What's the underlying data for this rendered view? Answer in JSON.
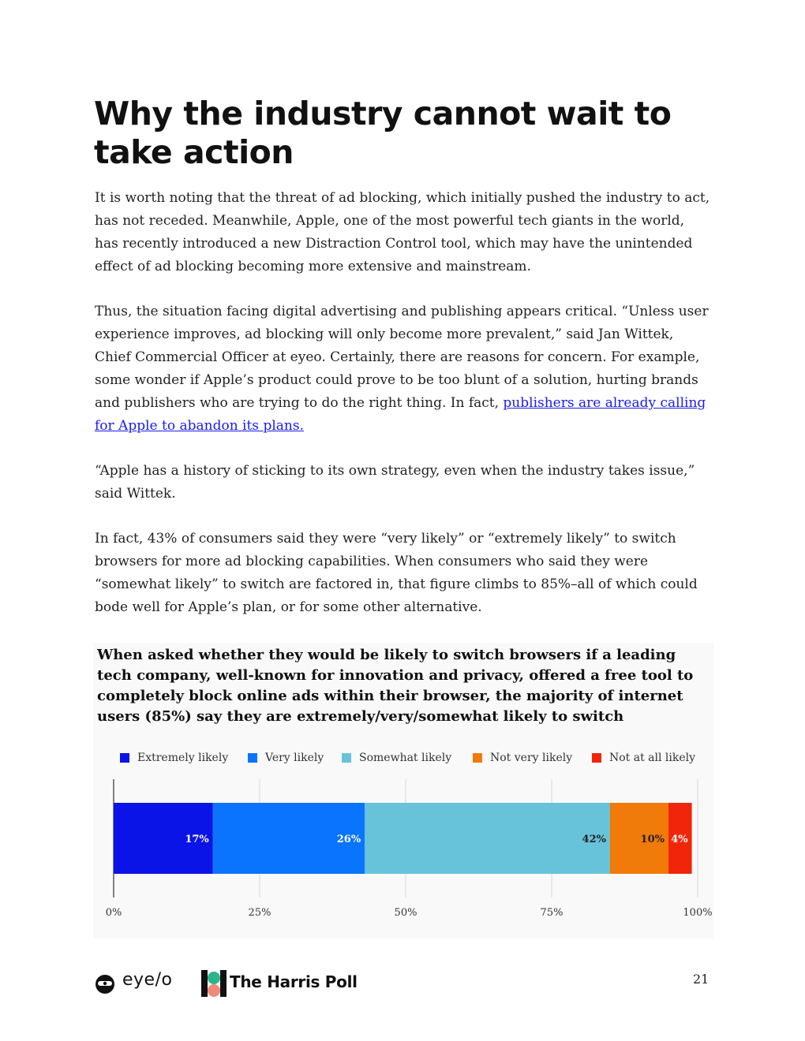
{
  "page": {
    "title": "Why the industry cannot wait to take action",
    "paragraph_1": "It is worth noting that the threat of ad blocking, which initially pushed the industry to act, has not receded. Meanwhile, Apple, one of the most powerful tech giants in the world, has recently introduced a new Distraction Control tool, which may have the unintended effect of ad blocking becoming more extensive and mainstream.",
    "paragraph_2_text": "Thus, the situation facing digital advertising and publishing appears critical. “Unless user experience improves, ad blocking will only become more prevalent,” said Jan Wittek, Chief Commercial Officer at eyeo. Certainly, there are reasons for concern. For example, some wonder if Apple’s product could prove to be too blunt of a solution, hurting brands and publishers who are trying to do the right thing. In fact, ",
    "paragraph_2_link": "publishers are already calling for Apple to abandon its plans.",
    "paragraph_3": "“Apple has a history of sticking to its own strategy, even when the industry takes issue,” said Wittek.",
    "paragraph_4": "In fact, 43% of consumers said they were “very likely” or “extremely likely” to switch browsers for more ad blocking capabilities. When consumers who said they were “somewhat likely” to switch are factored in, that figure climbs to 85%–all of which could bode well for Apple’s plan, or for some other alternative.",
    "page_number": "21"
  },
  "footer": {
    "eyeo_logo_text": "eye/o",
    "harris_logo_text": "The Harris Poll"
  },
  "chart_data": {
    "type": "bar",
    "orientation": "horizontal",
    "stacked": true,
    "title": "When asked whether they would be likely to switch browsers if a leading tech company, well-known for innovation and privacy, offered a free tool to completely block online ads within their browser, the majority of internet users (85%) say they are extremely/very/somewhat likely to switch",
    "xlim": [
      0,
      100
    ],
    "x_ticks": [
      "0%",
      "25%",
      "50%",
      "75%",
      "100%"
    ],
    "grid": true,
    "legend_position": "top",
    "series": [
      {
        "name": "Extremely likely",
        "value": 17,
        "label": "17%",
        "color": "#0a14e6",
        "label_color": "#ffffff"
      },
      {
        "name": "Very likely",
        "value": 26,
        "label": "26%",
        "color": "#0a74ff",
        "label_color": "#ffffff"
      },
      {
        "name": "Somewhat likely",
        "value": 42,
        "label": "42%",
        "color": "#66c3d9",
        "label_color": "#222222"
      },
      {
        "name": "Not very likely",
        "value": 10,
        "label": "10%",
        "color": "#f07a0a",
        "label_color": "#222222"
      },
      {
        "name": "Not at all likely",
        "value": 4,
        "label": "4%",
        "color": "#f0260a",
        "label_color": "#ffffff"
      }
    ]
  }
}
